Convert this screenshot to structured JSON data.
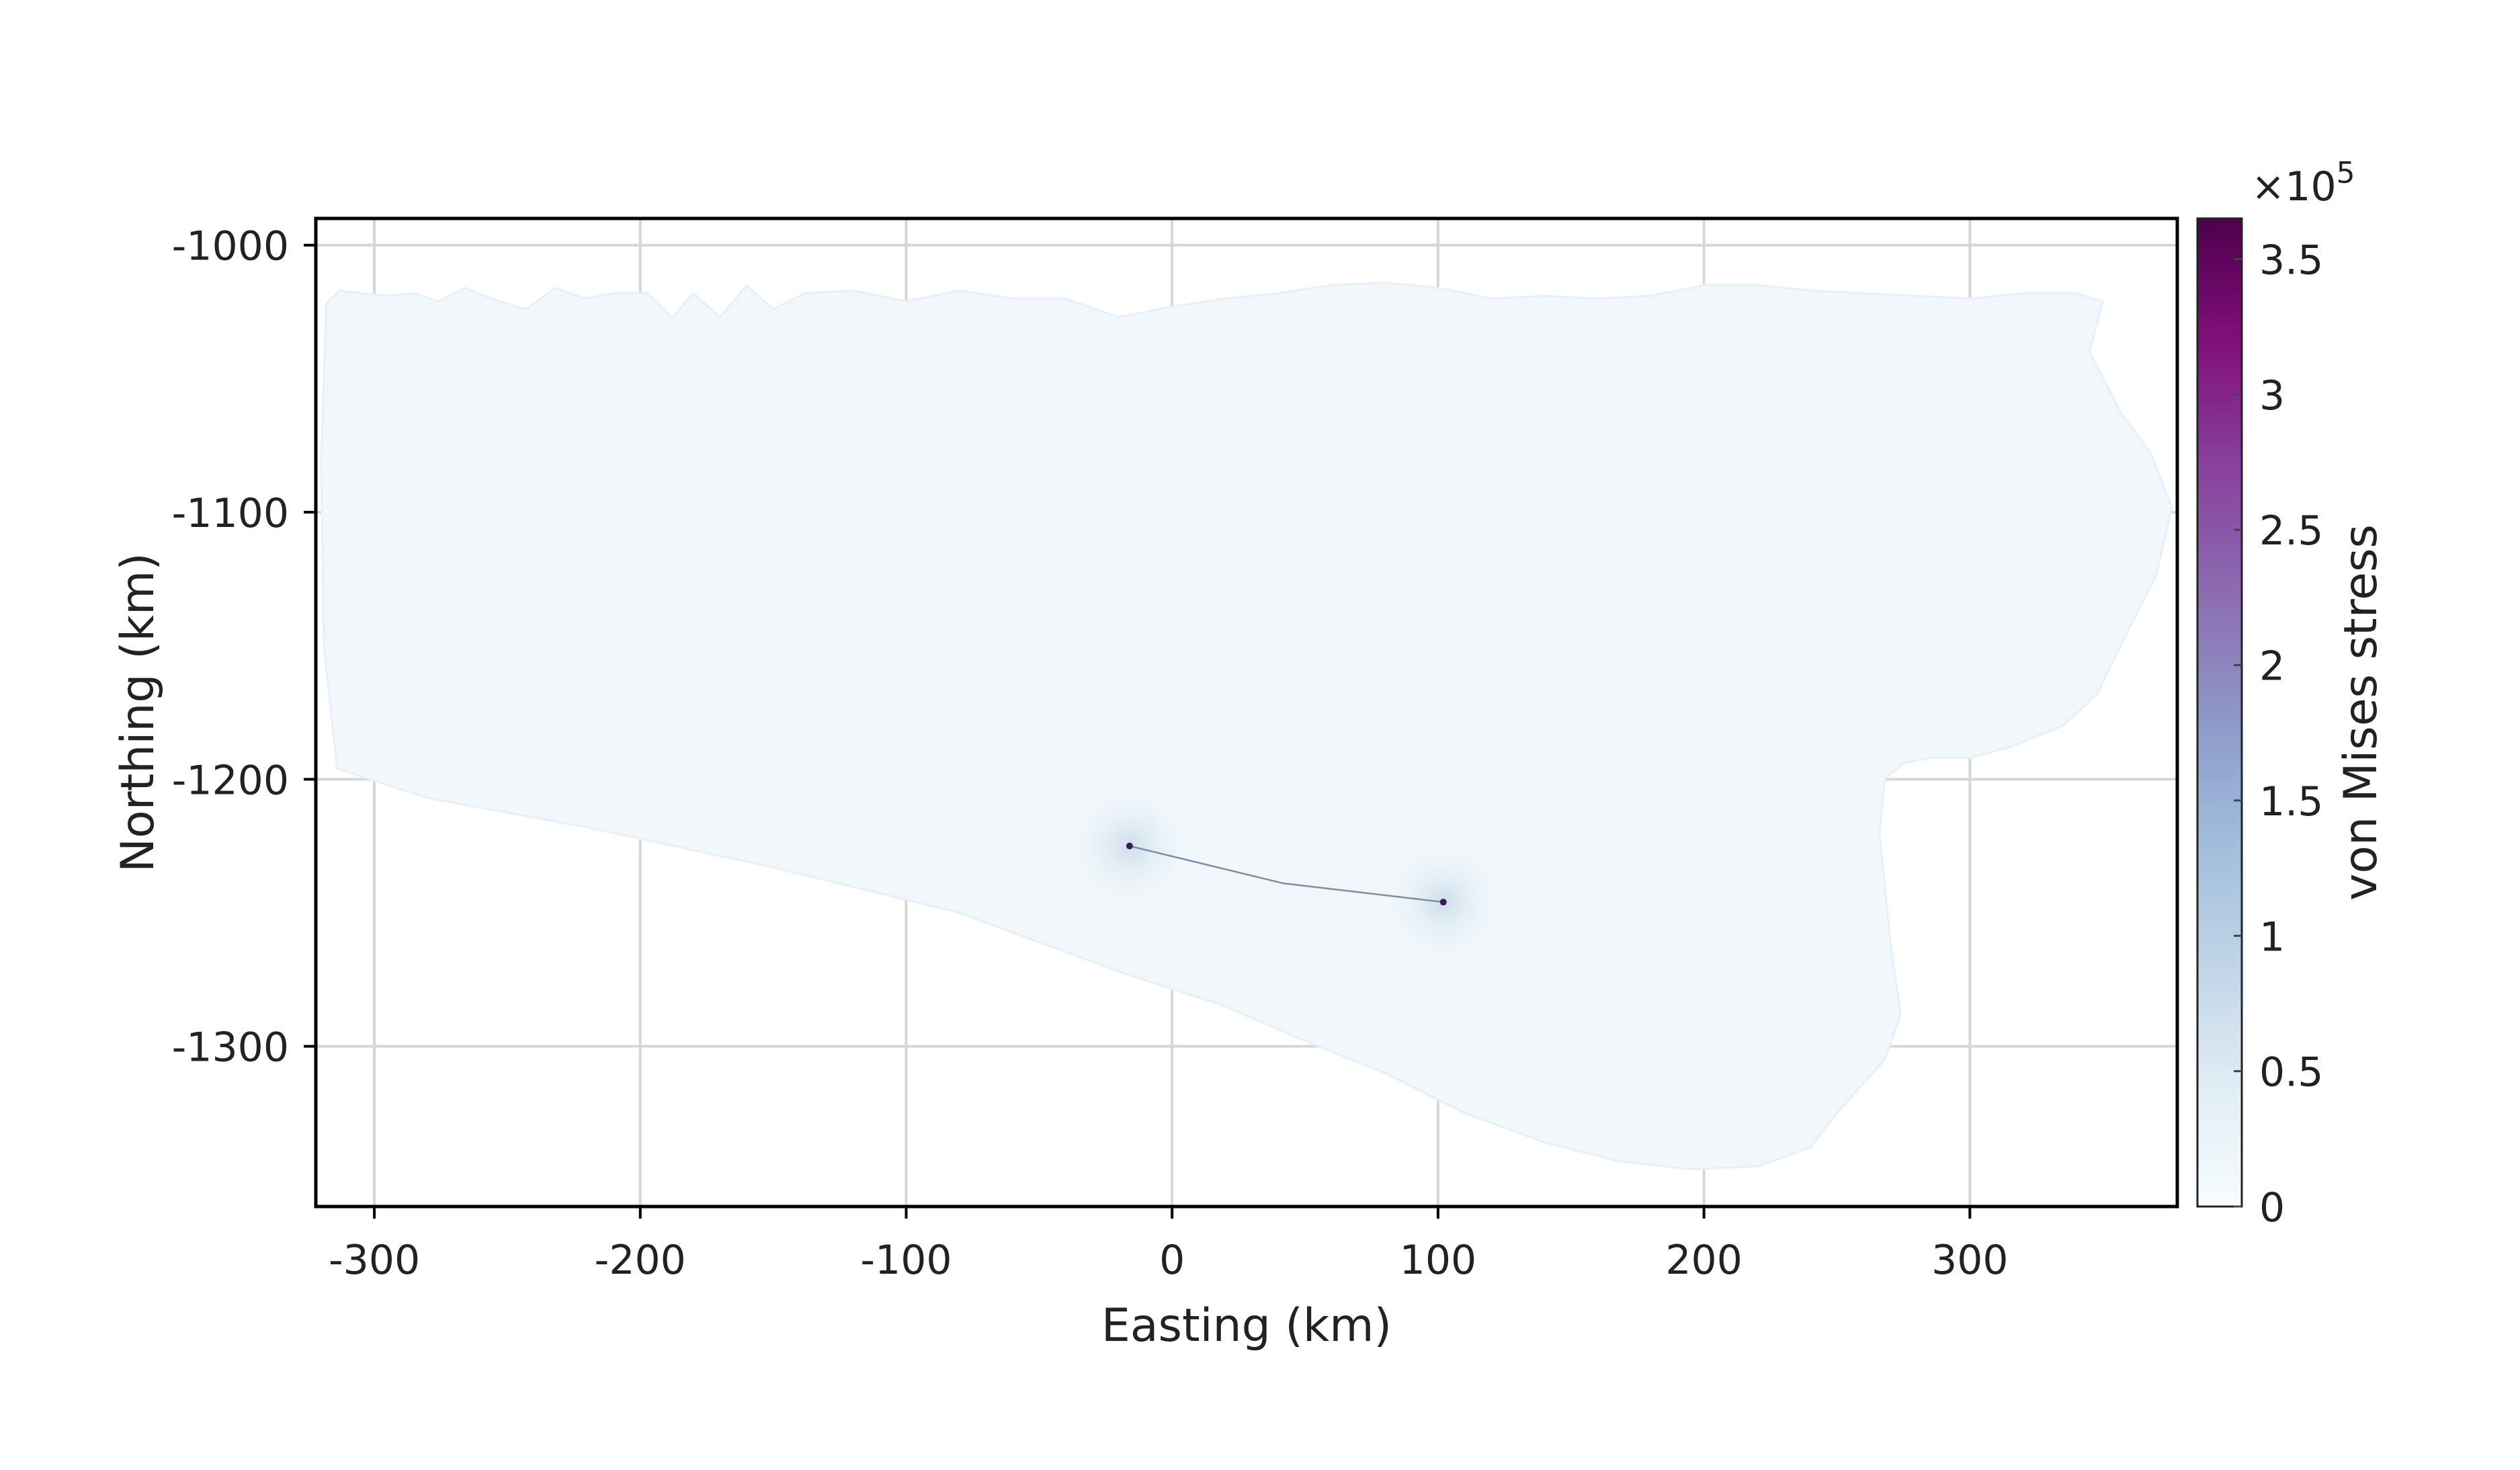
{
  "chart_data": {
    "type": "heatmap",
    "title": "",
    "xlabel": "Easting (km)",
    "ylabel": "Northing (km)",
    "xlim": [
      -322,
      378
    ],
    "ylim": [
      -1360,
      -990
    ],
    "xticks": [
      -300,
      -200,
      -100,
      0,
      100,
      200,
      300
    ],
    "yticks": [
      -1000,
      -1100,
      -1200,
      -1300
    ],
    "grid": true,
    "colorbar": {
      "label": "von Mises stress",
      "multiplier": "×10",
      "exponent": "5",
      "range": [
        0,
        365000
      ],
      "ticks": [
        0,
        0.5,
        1,
        1.5,
        2,
        2.5,
        3,
        3.5
      ],
      "tick_scale": 100000,
      "colors": [
        "#f7fcfd",
        "#e0ecf4",
        "#bfd3e6",
        "#9ebcda",
        "#8c96c6",
        "#8c6bb1",
        "#88419d",
        "#810f7c",
        "#4d004b"
      ]
    },
    "domain_outline": [
      [
        -318,
        -1022
      ],
      [
        -313,
        -1017
      ],
      [
        -296,
        -1019
      ],
      [
        -285,
        -1018
      ],
      [
        -276,
        -1021
      ],
      [
        -266,
        -1016
      ],
      [
        -256,
        -1020
      ],
      [
        -243,
        -1024
      ],
      [
        -232,
        -1016
      ],
      [
        -221,
        -1020
      ],
      [
        -210,
        -1018
      ],
      [
        -197,
        -1018
      ],
      [
        -188,
        -1027
      ],
      [
        -180,
        -1018
      ],
      [
        -170,
        -1027
      ],
      [
        -160,
        -1015
      ],
      [
        -150,
        -1024
      ],
      [
        -138,
        -1018
      ],
      [
        -120,
        -1017
      ],
      [
        -100,
        -1021
      ],
      [
        -80,
        -1017
      ],
      [
        -60,
        -1020
      ],
      [
        -40,
        -1020
      ],
      [
        -20,
        -1027
      ],
      [
        0,
        -1023
      ],
      [
        20,
        -1020
      ],
      [
        40,
        -1018
      ],
      [
        60,
        -1015
      ],
      [
        80,
        -1014
      ],
      [
        100,
        -1016
      ],
      [
        120,
        -1020
      ],
      [
        140,
        -1019
      ],
      [
        160,
        -1020
      ],
      [
        180,
        -1019
      ],
      [
        200,
        -1015
      ],
      [
        220,
        -1015
      ],
      [
        240,
        -1017
      ],
      [
        260,
        -1018
      ],
      [
        280,
        -1019
      ],
      [
        300,
        -1020
      ],
      [
        320,
        -1018
      ],
      [
        340,
        -1018
      ],
      [
        350,
        -1021
      ],
      [
        345,
        -1040
      ],
      [
        357,
        -1063
      ],
      [
        368,
        -1078
      ],
      [
        376,
        -1098
      ],
      [
        370,
        -1124
      ],
      [
        360,
        -1143
      ],
      [
        348,
        -1168
      ],
      [
        335,
        -1180
      ],
      [
        315,
        -1188
      ],
      [
        300,
        -1192
      ],
      [
        285,
        -1192
      ],
      [
        275,
        -1194
      ],
      [
        268,
        -1200
      ],
      [
        266,
        -1220
      ],
      [
        270,
        -1260
      ],
      [
        274,
        -1288
      ],
      [
        268,
        -1305
      ],
      [
        250,
        -1325
      ],
      [
        240,
        -1338
      ],
      [
        220,
        -1345
      ],
      [
        195,
        -1346
      ],
      [
        168,
        -1343
      ],
      [
        140,
        -1336
      ],
      [
        110,
        -1325
      ],
      [
        80,
        -1310
      ],
      [
        50,
        -1298
      ],
      [
        20,
        -1285
      ],
      [
        -20,
        -1272
      ],
      [
        -80,
        -1250
      ],
      [
        -150,
        -1233
      ],
      [
        -220,
        -1218
      ],
      [
        -280,
        -1207
      ],
      [
        -314,
        -1196
      ],
      [
        -319,
        -1150
      ],
      [
        -320,
        -1080
      ]
    ],
    "rift": {
      "path": [
        [
          -16,
          -1225
        ],
        [
          42,
          -1239
        ],
        [
          102,
          -1246
        ]
      ],
      "tips": [
        [
          -16,
          -1225
        ],
        [
          102,
          -1246
        ]
      ]
    }
  }
}
